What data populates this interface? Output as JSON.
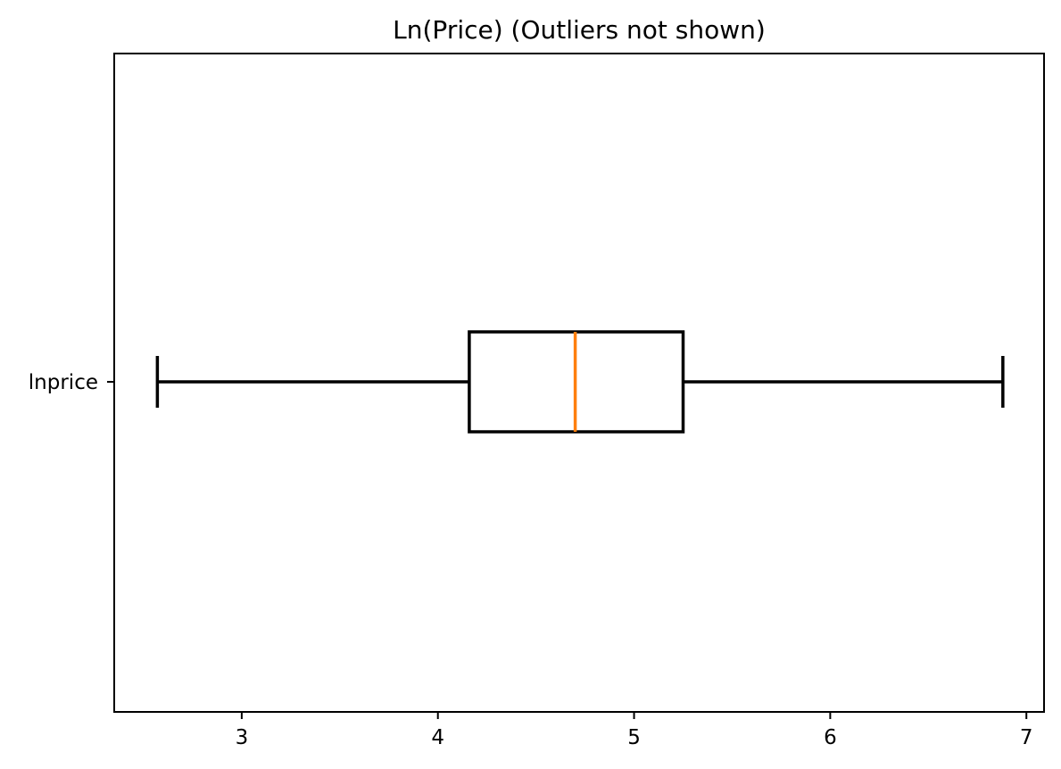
{
  "chart_data": {
    "type": "boxplot",
    "orientation": "horizontal",
    "title": "Ln(Price) (Outliers not shown)",
    "categories": [
      "lnprice"
    ],
    "boxes": [
      {
        "category": "lnprice",
        "whisker_low": 2.57,
        "q1": 4.16,
        "median": 4.7,
        "q3": 5.25,
        "whisker_high": 6.88
      }
    ],
    "xticks": [
      3,
      4,
      5,
      6,
      7
    ],
    "xlim": [
      2.35,
      7.09
    ],
    "xlabel": "",
    "ylabel": "",
    "grid": false,
    "colors": {
      "box": "#000000",
      "median": "#ff7f0e",
      "axes": "#000000"
    }
  }
}
